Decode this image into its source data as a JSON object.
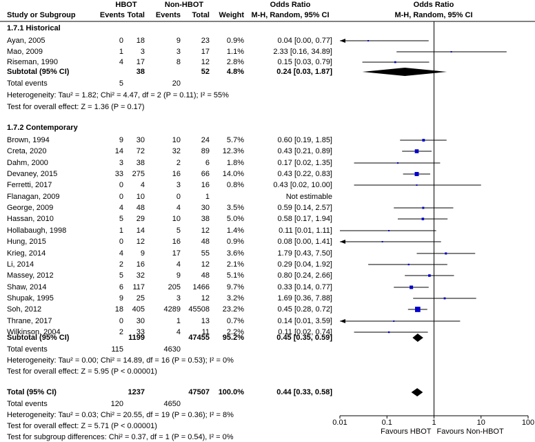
{
  "headers": {
    "group1": "HBOT",
    "group2": "Non-HBOT",
    "study_col": "Study or Subgroup",
    "events": "Events",
    "total": "Total",
    "weight": "Weight",
    "or_title": "Odds Ratio",
    "or_method": "M-H, Random, 95% CI",
    "plot_title": "Odds Ratio",
    "plot_method": "M-H, Random, 95% CI"
  },
  "chart_data": {
    "type": "forest",
    "x_scale": "log",
    "xlim": [
      0.01,
      100
    ],
    "x_ticks": [
      {
        "value": 0.01,
        "label": "0.01"
      },
      {
        "value": 0.1,
        "label": "0.1"
      },
      {
        "value": 1,
        "label": "1"
      },
      {
        "value": 10,
        "label": "10"
      },
      {
        "value": 100,
        "label": "100"
      }
    ],
    "favours_left": "Favours HBOT",
    "favours_right": "Favours Non-HBOT",
    "subgroups": [
      {
        "title": "1.7.1 Historical",
        "studies": [
          {
            "name": "Ayan, 2005",
            "e1": "0",
            "t1": "18",
            "e2": "9",
            "t2": "23",
            "weight": "0.9%",
            "ci_text": "0.04 [0.00, 0.77]",
            "or": 0.04,
            "lo": 0.002,
            "hi": 0.77,
            "w": 0.9
          },
          {
            "name": "Mao, 2009",
            "e1": "1",
            "t1": "3",
            "e2": "3",
            "t2": "17",
            "weight": "1.1%",
            "ci_text": "2.33 [0.16, 34.89]",
            "or": 2.33,
            "lo": 0.16,
            "hi": 34.89,
            "w": 1.1
          },
          {
            "name": "Riseman, 1990",
            "e1": "4",
            "t1": "17",
            "e2": "8",
            "t2": "12",
            "weight": "2.8%",
            "ci_text": "0.15 [0.03, 0.79]",
            "or": 0.15,
            "lo": 0.03,
            "hi": 0.79,
            "w": 2.8
          }
        ],
        "subtotal": {
          "label": "Subtotal (95% CI)",
          "t1": "38",
          "t2": "52",
          "weight": "4.8%",
          "ci_text": "0.24 [0.03, 1.87]",
          "or": 0.24,
          "lo": 0.03,
          "hi": 1.87
        },
        "total_events": {
          "label": "Total events",
          "e1": "5",
          "e2": "20"
        },
        "heterogeneity": "Heterogeneity: Tau² = 1.82; Chi² = 4.47, df = 2 (P = 0.11); I² = 55%",
        "overall_effect": "Test for overall effect: Z = 1.36 (P = 0.17)"
      },
      {
        "title": "1.7.2 Contemporary",
        "studies": [
          {
            "name": "Brown, 1994",
            "e1": "9",
            "t1": "30",
            "e2": "10",
            "t2": "24",
            "weight": "5.7%",
            "ci_text": "0.60 [0.19, 1.85]",
            "or": 0.6,
            "lo": 0.19,
            "hi": 1.85,
            "w": 5.7
          },
          {
            "name": "Creta, 2020",
            "e1": "14",
            "t1": "72",
            "e2": "32",
            "t2": "89",
            "weight": "12.3%",
            "ci_text": "0.43 [0.21, 0.89]",
            "or": 0.43,
            "lo": 0.21,
            "hi": 0.89,
            "w": 12.3
          },
          {
            "name": "Dahm, 2000",
            "e1": "3",
            "t1": "38",
            "e2": "2",
            "t2": "6",
            "weight": "1.8%",
            "ci_text": "0.17 [0.02, 1.35]",
            "or": 0.17,
            "lo": 0.02,
            "hi": 1.35,
            "w": 1.8
          },
          {
            "name": "Devaney, 2015",
            "e1": "33",
            "t1": "275",
            "e2": "16",
            "t2": "66",
            "weight": "14.0%",
            "ci_text": "0.43 [0.22, 0.83]",
            "or": 0.43,
            "lo": 0.22,
            "hi": 0.83,
            "w": 14.0
          },
          {
            "name": "Ferretti, 2017",
            "e1": "0",
            "t1": "4",
            "e2": "3",
            "t2": "16",
            "weight": "0.8%",
            "ci_text": "0.43 [0.02, 10.00]",
            "or": 0.43,
            "lo": 0.02,
            "hi": 10.0,
            "w": 0.8
          },
          {
            "name": "Flanagan, 2009",
            "e1": "0",
            "t1": "10",
            "e2": "0",
            "t2": "1",
            "weight": "",
            "ci_text": "Not estimable",
            "or": null,
            "lo": null,
            "hi": null,
            "w": 0
          },
          {
            "name": "George, 2009",
            "e1": "4",
            "t1": "48",
            "e2": "4",
            "t2": "30",
            "weight": "3.5%",
            "ci_text": "0.59 [0.14, 2.57]",
            "or": 0.59,
            "lo": 0.14,
            "hi": 2.57,
            "w": 3.5
          },
          {
            "name": "Hassan, 2010",
            "e1": "5",
            "t1": "29",
            "e2": "10",
            "t2": "38",
            "weight": "5.0%",
            "ci_text": "0.58 [0.17, 1.94]",
            "or": 0.58,
            "lo": 0.17,
            "hi": 1.94,
            "w": 5.0
          },
          {
            "name": "Hollabaugh, 1998",
            "e1": "1",
            "t1": "14",
            "e2": "5",
            "t2": "12",
            "weight": "1.4%",
            "ci_text": "0.11 [0.01, 1.11]",
            "or": 0.11,
            "lo": 0.01,
            "hi": 1.11,
            "w": 1.4
          },
          {
            "name": "Hung, 2015",
            "e1": "0",
            "t1": "12",
            "e2": "16",
            "t2": "48",
            "weight": "0.9%",
            "ci_text": "0.08 [0.00, 1.41]",
            "or": 0.08,
            "lo": 0.004,
            "hi": 1.41,
            "w": 0.9
          },
          {
            "name": "Krieg, 2014",
            "e1": "4",
            "t1": "9",
            "e2": "17",
            "t2": "55",
            "weight": "3.6%",
            "ci_text": "1.79 [0.43, 7.50]",
            "or": 1.79,
            "lo": 0.43,
            "hi": 7.5,
            "w": 3.6
          },
          {
            "name": "Li, 2014",
            "e1": "2",
            "t1": "16",
            "e2": "4",
            "t2": "12",
            "weight": "2.1%",
            "ci_text": "0.29 [0.04, 1.92]",
            "or": 0.29,
            "lo": 0.04,
            "hi": 1.92,
            "w": 2.1
          },
          {
            "name": "Massey, 2012",
            "e1": "5",
            "t1": "32",
            "e2": "9",
            "t2": "48",
            "weight": "5.1%",
            "ci_text": "0.80 [0.24, 2.66]",
            "or": 0.8,
            "lo": 0.24,
            "hi": 2.66,
            "w": 5.1
          },
          {
            "name": "Shaw, 2014",
            "e1": "6",
            "t1": "117",
            "e2": "205",
            "t2": "1466",
            "weight": "9.7%",
            "ci_text": "0.33 [0.14, 0.77]",
            "or": 0.33,
            "lo": 0.14,
            "hi": 0.77,
            "w": 9.7
          },
          {
            "name": "Shupak, 1995",
            "e1": "9",
            "t1": "25",
            "e2": "3",
            "t2": "12",
            "weight": "3.2%",
            "ci_text": "1.69 [0.36, 7.88]",
            "or": 1.69,
            "lo": 0.36,
            "hi": 7.88,
            "w": 3.2
          },
          {
            "name": "Soh, 2012",
            "e1": "18",
            "t1": "405",
            "e2": "4289",
            "t2": "45508",
            "weight": "23.2%",
            "ci_text": "0.45 [0.28, 0.72]",
            "or": 0.45,
            "lo": 0.28,
            "hi": 0.72,
            "w": 23.2
          },
          {
            "name": "Thrane, 2017",
            "e1": "0",
            "t1": "30",
            "e2": "1",
            "t2": "13",
            "weight": "0.7%",
            "ci_text": "0.14 [0.01, 3.59]",
            "or": 0.14,
            "lo": 0.006,
            "hi": 3.59,
            "w": 0.7
          },
          {
            "name": "Wilkinson, 2004",
            "e1": "2",
            "t1": "33",
            "e2": "4",
            "t2": "11",
            "weight": "2.2%",
            "ci_text": "0.11 [0.02, 0.74]",
            "or": 0.11,
            "lo": 0.02,
            "hi": 0.74,
            "w": 2.2
          }
        ],
        "subtotal": {
          "label": "Subtotal (95% CI)",
          "t1": "1199",
          "t2": "47455",
          "weight": "95.2%",
          "ci_text": "0.45 [0.35, 0.59]",
          "or": 0.45,
          "lo": 0.35,
          "hi": 0.59
        },
        "total_events": {
          "label": "Total events",
          "e1": "115",
          "e2": "4630"
        },
        "heterogeneity": "Heterogeneity: Tau² = 0.00; Chi² = 14.89, df = 16 (P = 0.53); I² = 0%",
        "overall_effect": "Test for overall effect: Z = 5.95 (P < 0.00001)"
      }
    ],
    "overall": {
      "label": "Total (95% CI)",
      "t1": "1237",
      "t2": "47507",
      "weight": "100.0%",
      "ci_text": "0.44 [0.33, 0.58]",
      "or": 0.44,
      "lo": 0.33,
      "hi": 0.58,
      "total_events": {
        "label": "Total events",
        "e1": "120",
        "e2": "4650"
      },
      "heterogeneity": "Heterogeneity: Tau² = 0.03; Chi² = 20.55, df = 19 (P = 0.36); I² = 8%",
      "overall_effect": "Test for overall effect: Z = 5.71 (P < 0.00001)",
      "subgroup_diff": "Test for subgroup differences: Chi² = 0.37, df = 1 (P = 0.54), I² = 0%"
    },
    "colors": {
      "square": "#0000cc",
      "diamond": "#000000",
      "lines": "#000000"
    }
  }
}
